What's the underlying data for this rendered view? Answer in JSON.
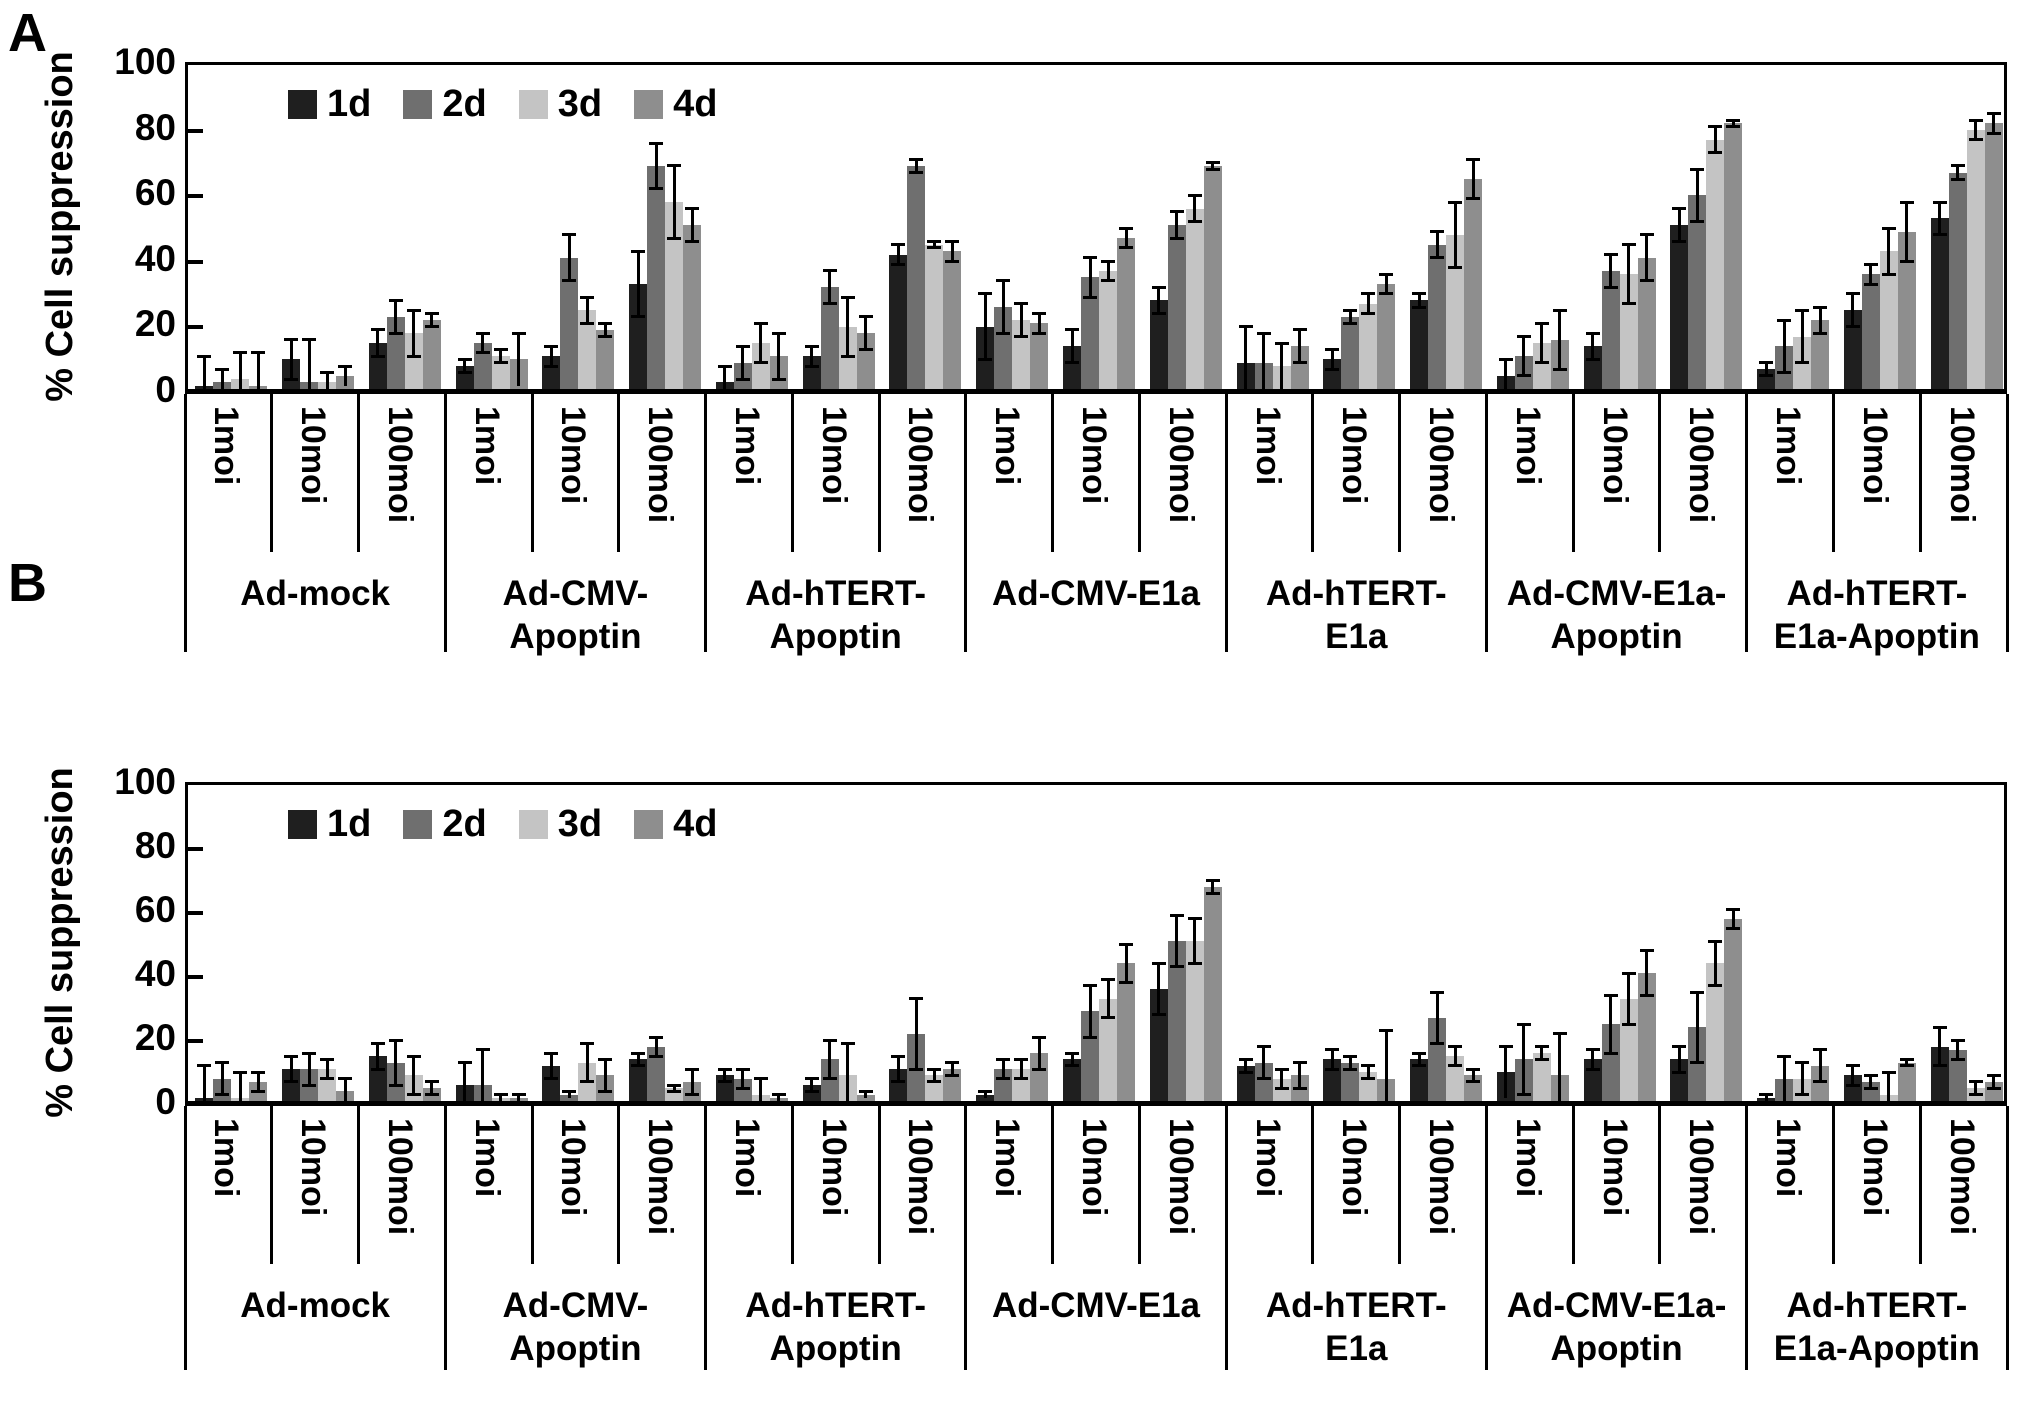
{
  "chart_data": [
    {
      "panel": "A",
      "type": "bar",
      "title": "",
      "ylabel": "% Cell suppression",
      "ylim": [
        0,
        100
      ],
      "yticks": [
        0,
        20,
        40,
        60,
        80,
        100
      ],
      "grid": false,
      "legend_position": "top-left-inside",
      "series_labels": [
        "1d",
        "2d",
        "3d",
        "4d"
      ],
      "series_colors": [
        "#1f1f1f",
        "#6f6f6f",
        "#c4c4c4",
        "#8e8e8e"
      ],
      "moi_labels": [
        "1moi",
        "10moi",
        "100moi"
      ],
      "groups": [
        {
          "name": "Ad-mock",
          "label_lines": [
            "Ad-mock"
          ],
          "clusters": [
            {
              "moi": "1moi",
              "values": [
                1,
                2,
                3,
                1
              ],
              "errors": [
                9,
                4,
                8,
                10
              ]
            },
            {
              "moi": "10moi",
              "values": [
                9,
                2,
                2,
                4
              ],
              "errors": [
                6,
                13,
                3,
                3
              ]
            },
            {
              "moi": "100moi",
              "values": [
                14,
                22,
                17,
                21
              ],
              "errors": [
                4,
                5,
                7,
                2
              ]
            }
          ]
        },
        {
          "name": "Ad-CMV-Apoptin",
          "label_lines": [
            "Ad-CMV-",
            "Apoptin"
          ],
          "clusters": [
            {
              "moi": "1moi",
              "values": [
                7,
                14,
                10,
                9
              ],
              "errors": [
                2,
                3,
                2,
                8
              ]
            },
            {
              "moi": "10moi",
              "values": [
                10,
                40,
                24,
                18
              ],
              "errors": [
                3,
                7,
                4,
                2
              ]
            },
            {
              "moi": "100moi",
              "values": [
                32,
                68,
                57,
                50
              ],
              "errors": [
                10,
                7,
                11,
                5
              ]
            }
          ]
        },
        {
          "name": "Ad-hTERT-Apoptin",
          "label_lines": [
            "Ad-hTERT-",
            "Apoptin"
          ],
          "clusters": [
            {
              "moi": "1moi",
              "values": [
                2,
                8,
                14,
                10
              ],
              "errors": [
                5,
                5,
                6,
                7
              ]
            },
            {
              "moi": "10moi",
              "values": [
                10,
                31,
                19,
                17
              ],
              "errors": [
                3,
                5,
                9,
                5
              ]
            },
            {
              "moi": "100moi",
              "values": [
                41,
                68,
                44,
                42
              ],
              "errors": [
                3,
                2,
                1,
                3
              ]
            }
          ]
        },
        {
          "name": "Ad-CMV-E1a",
          "label_lines": [
            "Ad-CMV-E1a"
          ],
          "clusters": [
            {
              "moi": "1moi",
              "values": [
                19,
                25,
                21,
                20
              ],
              "errors": [
                10,
                8,
                5,
                3
              ]
            },
            {
              "moi": "10moi",
              "values": [
                13,
                34,
                36,
                46
              ],
              "errors": [
                5,
                6,
                3,
                3
              ]
            },
            {
              "moi": "100moi",
              "values": [
                27,
                50,
                55,
                68
              ],
              "errors": [
                4,
                4,
                4,
                1
              ]
            }
          ]
        },
        {
          "name": "Ad-hTERT-E1a",
          "label_lines": [
            "Ad-hTERT-",
            "E1a"
          ],
          "clusters": [
            {
              "moi": "1moi",
              "values": [
                8,
                8,
                7,
                13
              ],
              "errors": [
                11,
                9,
                7,
                5
              ]
            },
            {
              "moi": "10moi",
              "values": [
                9,
                22,
                26,
                32
              ],
              "errors": [
                3,
                2,
                3,
                3
              ]
            },
            {
              "moi": "100moi",
              "values": [
                27,
                44,
                47,
                64
              ],
              "errors": [
                2,
                4,
                10,
                6
              ]
            }
          ]
        },
        {
          "name": "Ad-CMV-E1a-Apoptin",
          "label_lines": [
            "Ad-CMV-E1a-",
            "Apoptin"
          ],
          "clusters": [
            {
              "moi": "1moi",
              "values": [
                4,
                10,
                14,
                15
              ],
              "errors": [
                5,
                6,
                6,
                9
              ]
            },
            {
              "moi": "10moi",
              "values": [
                13,
                36,
                35,
                40
              ],
              "errors": [
                4,
                5,
                9,
                7
              ]
            },
            {
              "moi": "100moi",
              "values": [
                50,
                59,
                76,
                81
              ],
              "errors": [
                5,
                8,
                4,
                1
              ]
            }
          ]
        },
        {
          "name": "Ad-hTERT-E1a-Apoptin",
          "label_lines": [
            "Ad-hTERT-",
            "E1a-Apoptin"
          ],
          "clusters": [
            {
              "moi": "1moi",
              "values": [
                6,
                13,
                16,
                21
              ],
              "errors": [
                2,
                8,
                8,
                4
              ]
            },
            {
              "moi": "10moi",
              "values": [
                24,
                35,
                42,
                48
              ],
              "errors": [
                5,
                3,
                7,
                9
              ]
            },
            {
              "moi": "100moi",
              "values": [
                52,
                66,
                79,
                81
              ],
              "errors": [
                5,
                2,
                3,
                3
              ]
            }
          ]
        }
      ]
    },
    {
      "panel": "B",
      "type": "bar",
      "title": "",
      "ylabel": "% Cell suppression",
      "ylim": [
        0,
        100
      ],
      "yticks": [
        0,
        20,
        40,
        60,
        80,
        100
      ],
      "grid": false,
      "legend_position": "top-left-inside",
      "series_labels": [
        "1d",
        "2d",
        "3d",
        "4d"
      ],
      "series_colors": [
        "#1f1f1f",
        "#6f6f6f",
        "#c4c4c4",
        "#8e8e8e"
      ],
      "moi_labels": [
        "1moi",
        "10moi",
        "100moi"
      ],
      "groups": [
        {
          "name": "Ad-mock",
          "label_lines": [
            "Ad-mock"
          ],
          "clusters": [
            {
              "moi": "1moi",
              "values": [
                1,
                7,
                1,
                6
              ],
              "errors": [
                10,
                5,
                8,
                3
              ]
            },
            {
              "moi": "10moi",
              "values": [
                10,
                10,
                10,
                3
              ],
              "errors": [
                4,
                5,
                3,
                4
              ]
            },
            {
              "moi": "100moi",
              "values": [
                14,
                12,
                8,
                4
              ],
              "errors": [
                4,
                7,
                6,
                2
              ]
            }
          ]
        },
        {
          "name": "Ad-CMV-Apoptin",
          "label_lines": [
            "Ad-CMV-",
            "Apoptin"
          ],
          "clusters": [
            {
              "moi": "1moi",
              "values": [
                5,
                5,
                1,
                1
              ],
              "errors": [
                7,
                11,
                1,
                1
              ]
            },
            {
              "moi": "10moi",
              "values": [
                11,
                2,
                12,
                8
              ],
              "errors": [
                4,
                1,
                6,
                5
              ]
            },
            {
              "moi": "100moi",
              "values": [
                13,
                17,
                4,
                6
              ],
              "errors": [
                2,
                3,
                1,
                4
              ]
            }
          ]
        },
        {
          "name": "Ad-hTERT-Apoptin",
          "label_lines": [
            "Ad-hTERT-",
            "Apoptin"
          ],
          "clusters": [
            {
              "moi": "1moi",
              "values": [
                8,
                7,
                2,
                1
              ],
              "errors": [
                2,
                3,
                5,
                1
              ]
            },
            {
              "moi": "10moi",
              "values": [
                5,
                13,
                8,
                2
              ],
              "errors": [
                2,
                6,
                10,
                1
              ]
            },
            {
              "moi": "100moi",
              "values": [
                10,
                21,
                8,
                10
              ],
              "errors": [
                4,
                11,
                2,
                2
              ]
            }
          ]
        },
        {
          "name": "Ad-CMV-E1a",
          "label_lines": [
            "Ad-CMV-E1a"
          ],
          "clusters": [
            {
              "moi": "1moi",
              "values": [
                2,
                10,
                10,
                15
              ],
              "errors": [
                1,
                3,
                3,
                5
              ]
            },
            {
              "moi": "10moi",
              "values": [
                13,
                28,
                32,
                43
              ],
              "errors": [
                2,
                8,
                6,
                6
              ]
            },
            {
              "moi": "100moi",
              "values": [
                35,
                50,
                50,
                67
              ],
              "errors": [
                8,
                8,
                7,
                2
              ]
            }
          ]
        },
        {
          "name": "Ad-hTERT-E1a",
          "label_lines": [
            "Ad-hTERT-",
            "E1a"
          ],
          "clusters": [
            {
              "moi": "1moi",
              "values": [
                11,
                12,
                7,
                8
              ],
              "errors": [
                2,
                5,
                3,
                4
              ]
            },
            {
              "moi": "10moi",
              "values": [
                13,
                12,
                9,
                7
              ],
              "errors": [
                3,
                2,
                2,
                15
              ]
            },
            {
              "moi": "100moi",
              "values": [
                13,
                26,
                14,
                8
              ],
              "errors": [
                2,
                8,
                3,
                2
              ]
            }
          ]
        },
        {
          "name": "Ad-CMV-E1a-Apoptin",
          "label_lines": [
            "Ad-CMV-E1a-",
            "Apoptin"
          ],
          "clusters": [
            {
              "moi": "1moi",
              "values": [
                9,
                13,
                15,
                8
              ],
              "errors": [
                8,
                11,
                2,
                13
              ]
            },
            {
              "moi": "10moi",
              "values": [
                13,
                24,
                32,
                40
              ],
              "errors": [
                3,
                9,
                8,
                7
              ]
            },
            {
              "moi": "100moi",
              "values": [
                13,
                23,
                43,
                57
              ],
              "errors": [
                4,
                11,
                7,
                3
              ]
            }
          ]
        },
        {
          "name": "Ad-hTERT-E1a-Apoptin",
          "label_lines": [
            "Ad-hTERT-",
            "E1a-Apoptin"
          ],
          "clusters": [
            {
              "moi": "1moi",
              "values": [
                1,
                7,
                7,
                11
              ],
              "errors": [
                1,
                7,
                5,
                5
              ]
            },
            {
              "moi": "10moi",
              "values": [
                8,
                6,
                2,
                12
              ],
              "errors": [
                3,
                2,
                7,
                1
              ]
            },
            {
              "moi": "100moi",
              "values": [
                17,
                16,
                4,
                6
              ],
              "errors": [
                6,
                3,
                2,
                2
              ]
            }
          ]
        }
      ]
    }
  ]
}
